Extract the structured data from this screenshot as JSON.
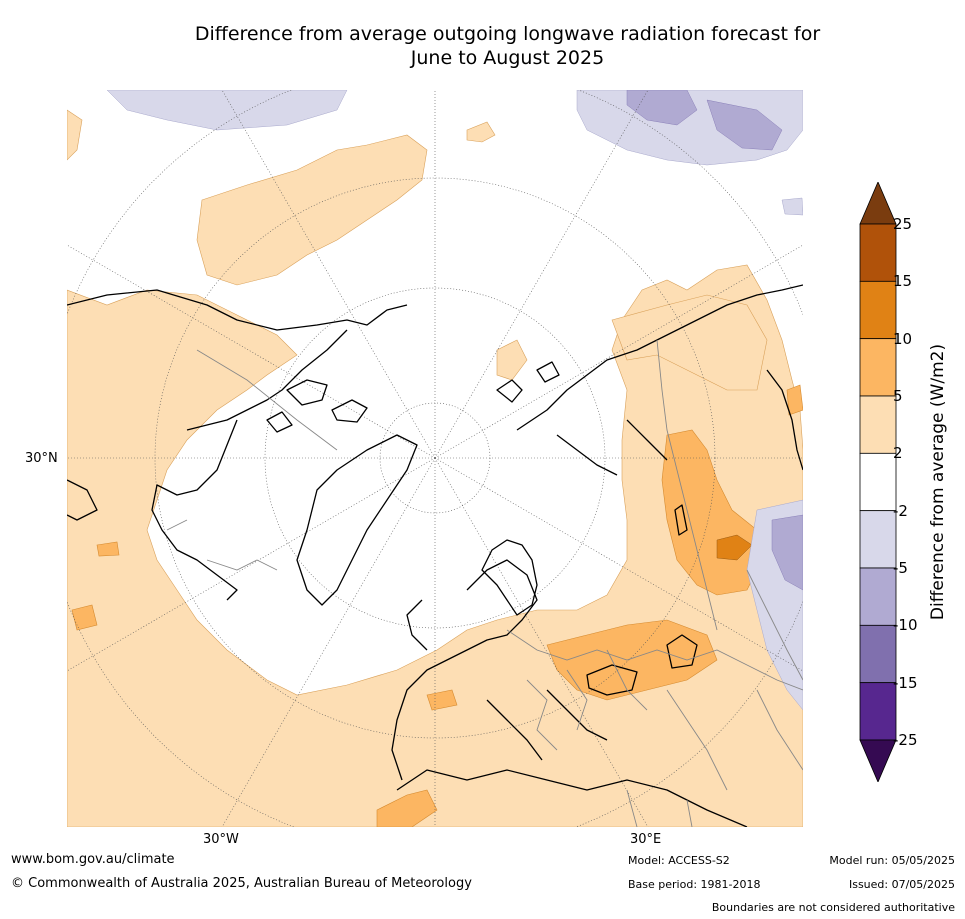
{
  "title": {
    "line1": "Difference from average outgoing longwave radiation forecast for",
    "line2": "June to August 2025"
  },
  "map": {
    "projection": "north-polar-stereographic",
    "labels": {
      "lat_left": "30°N",
      "lon_bottom_left": "30°W",
      "lon_bottom_right": "30°E"
    }
  },
  "colorbar": {
    "label": "Difference from average (W/m2)",
    "ticks": [
      "25",
      "15",
      "10",
      "5",
      "2",
      "-2",
      "-5",
      "-10",
      "-15",
      "-25"
    ],
    "colors": [
      "#7a3c0f",
      "#b0520a",
      "#e08215",
      "#fcb662",
      "#fddeb4",
      "#ffffff",
      "#d8d8ea",
      "#b0aad2",
      "#8070ae",
      "#57278f",
      "#350a52"
    ],
    "extend": "both"
  },
  "footer": {
    "website": "www.bom.gov.au/climate",
    "copyright": "© Commonwealth of Australia 2025, Australian Bureau of Meteorology",
    "model": "Model: ACCESS-S2",
    "base_period": "Base period: 1981-2018",
    "model_run": "Model run: 05/05/2025",
    "issued": "Issued: 07/05/2025",
    "disclaimer": "Boundaries are not considered authoritative"
  }
}
